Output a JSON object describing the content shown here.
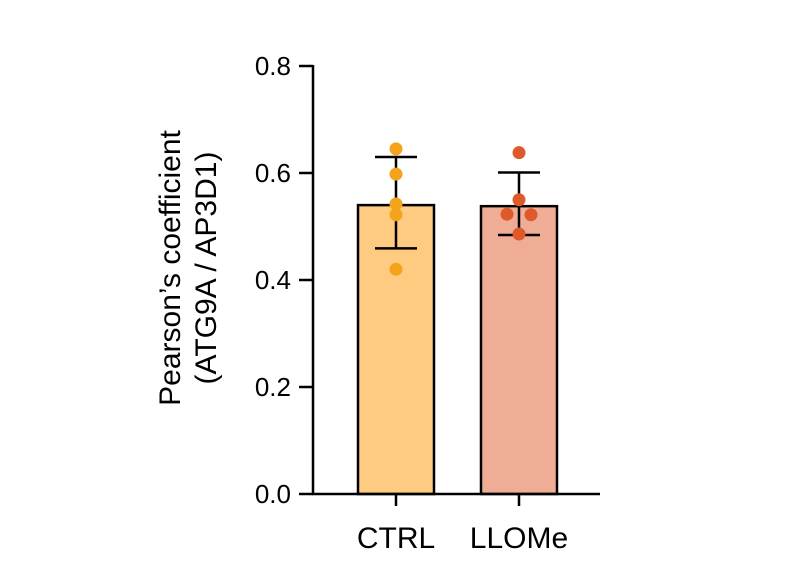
{
  "chart_data": {
    "type": "bar",
    "categories": [
      "CTRL",
      "LLOMe"
    ],
    "ylabel_line1": "Pearson’s coefficient",
    "ylabel_line2": "(ATG9A / AP3D1)",
    "ylim": [
      0,
      0.8
    ],
    "yticks": [
      "0.0",
      "0.2",
      "0.4",
      "0.6",
      "0.8"
    ],
    "series": [
      {
        "values": [
          0.54,
          0.538
        ],
        "error_low": [
          0.459,
          0.484
        ],
        "error_high": [
          0.63,
          0.601
        ],
        "bar_colors": [
          "#fecb80",
          "#f0ad95"
        ],
        "point_colors": [
          "#f5a31a",
          "#de5a2a"
        ],
        "points": [
          [
            0.645,
            0.598,
            0.542,
            0.522,
            0.42
          ],
          [
            0.638,
            0.55,
            0.523,
            0.522,
            0.486
          ]
        ]
      }
    ]
  }
}
